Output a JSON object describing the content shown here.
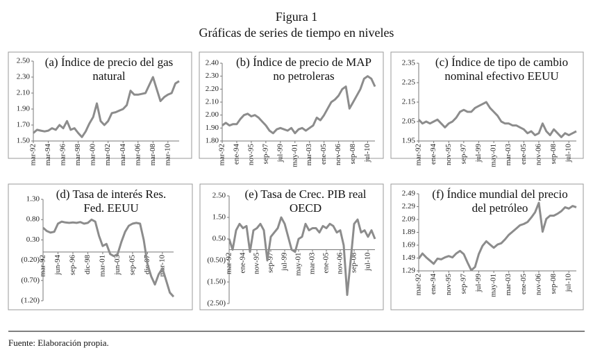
{
  "figure": {
    "title": "Figura 1",
    "subtitle": "Gráficas de series de tiempo en niveles"
  },
  "source": "Fuente: Elaboración propia.",
  "chart_data": [
    {
      "type": "line",
      "title": "(a) Índice de precio del gas natural",
      "color": "#8c8c8c",
      "categories": [
        "mar-92",
        null,
        null,
        null,
        "mar-94",
        null,
        null,
        null,
        "mar-96",
        null,
        null,
        null,
        "mar-98",
        null,
        null,
        null,
        "mar-00",
        null,
        null,
        null,
        "mar-02",
        null,
        null,
        null,
        "mar-04",
        null,
        null,
        null,
        "mar-06",
        null,
        null,
        null,
        "mar-08",
        null,
        null,
        null,
        "mar-10",
        null,
        null,
        null
      ],
      "values": [
        1.6,
        1.64,
        1.63,
        1.62,
        1.63,
        1.66,
        1.64,
        1.7,
        1.66,
        1.75,
        1.64,
        1.66,
        1.6,
        1.55,
        1.62,
        1.72,
        1.8,
        1.97,
        1.75,
        1.7,
        1.75,
        1.85,
        1.86,
        1.88,
        1.9,
        1.95,
        2.13,
        2.08,
        2.08,
        2.09,
        2.1,
        2.2,
        2.3,
        2.15,
        2.0,
        2.05,
        2.08,
        2.1,
        2.22,
        2.25
      ],
      "ylim": [
        1.5,
        2.5
      ],
      "yticks": [
        {
          "value": 1.5,
          "label": "1.50"
        },
        {
          "value": 1.7,
          "label": "1.70"
        },
        {
          "value": 1.9,
          "label": "1.90"
        },
        {
          "value": 2.1,
          "label": "2.10"
        },
        {
          "value": 2.3,
          "label": "2.30"
        },
        {
          "value": 2.5,
          "label": "2.50"
        }
      ]
    },
    {
      "type": "line",
      "title": "(b) Índice de precio de MAP no petroleras",
      "color": "#8c8c8c",
      "categories": [
        "mar-92",
        null,
        null,
        null,
        "ene-94",
        null,
        null,
        null,
        "nov-95",
        null,
        null,
        null,
        "sep-97",
        null,
        null,
        null,
        "jul-99",
        null,
        null,
        null,
        "may-01",
        null,
        null,
        null,
        "mar-03",
        null,
        null,
        null,
        "ene-05",
        null,
        null,
        null,
        "nov-06",
        null,
        null,
        null,
        "sep-08",
        null,
        null,
        null,
        "jul-10",
        null,
        null
      ],
      "values": [
        1.92,
        1.94,
        1.92,
        1.93,
        1.93,
        1.97,
        2.0,
        2.01,
        1.99,
        2.0,
        1.98,
        1.95,
        1.92,
        1.88,
        1.86,
        1.89,
        1.9,
        1.89,
        1.88,
        1.9,
        1.86,
        1.89,
        1.9,
        1.88,
        1.9,
        1.92,
        1.98,
        1.96,
        2.0,
        2.05,
        2.1,
        2.12,
        2.15,
        2.2,
        2.22,
        2.05,
        2.1,
        2.15,
        2.2,
        2.28,
        2.3,
        2.28,
        2.22
      ],
      "ylim": [
        1.8,
        2.4
      ],
      "yticks": [
        {
          "value": 1.8,
          "label": "1.80"
        },
        {
          "value": 1.9,
          "label": "1.90"
        },
        {
          "value": 2.0,
          "label": "2.00"
        },
        {
          "value": 2.1,
          "label": "2.10"
        },
        {
          "value": 2.2,
          "label": "2.20"
        },
        {
          "value": 2.3,
          "label": "2.30"
        },
        {
          "value": 2.4,
          "label": "2.40"
        }
      ]
    },
    {
      "type": "line",
      "title": "(c) Índice de tipo de cambio nominal efectivo EEUU",
      "color": "#8c8c8c",
      "categories": [
        "mar-92",
        null,
        null,
        null,
        "ene-94",
        null,
        null,
        null,
        "nov-95",
        null,
        null,
        null,
        "sep-97",
        null,
        null,
        null,
        "jul-99",
        null,
        null,
        null,
        "may-01",
        null,
        null,
        null,
        "mar-03",
        null,
        null,
        null,
        "ene-05",
        null,
        null,
        null,
        "nov-06",
        null,
        null,
        null,
        "sep-08",
        null,
        null,
        null,
        "jul-10",
        null,
        null
      ],
      "values": [
        2.06,
        2.04,
        2.05,
        2.04,
        2.05,
        2.06,
        2.04,
        2.02,
        2.04,
        2.05,
        2.07,
        2.1,
        2.11,
        2.1,
        2.1,
        2.12,
        2.13,
        2.14,
        2.15,
        2.12,
        2.1,
        2.08,
        2.05,
        2.04,
        2.04,
        2.03,
        2.03,
        2.02,
        2.01,
        1.99,
        2.0,
        1.98,
        1.99,
        2.04,
        2.0,
        1.98,
        2.01,
        1.99,
        1.97,
        1.99,
        1.98,
        1.99,
        2.0
      ],
      "ylim": [
        1.95,
        2.35
      ],
      "yticks": [
        1.95,
        2.05,
        2.15,
        2.25,
        2.35
      ]
    },
    {
      "type": "line",
      "title": "(d) Tasa de interés Res. Fed. EEUU",
      "color": "#8c8c8c",
      "categories": [
        "mar-92",
        null,
        null,
        null,
        "jun-94",
        null,
        null,
        null,
        "sep-96",
        null,
        null,
        null,
        "dic-98",
        null,
        null,
        null,
        "mar-01",
        null,
        null,
        null,
        "jun-03",
        null,
        null,
        null,
        "sep-05",
        null,
        null,
        null,
        "dic-07",
        null,
        null,
        null,
        "mar-10",
        null,
        null,
        null
      ],
      "values": [
        0.6,
        0.52,
        0.48,
        0.5,
        0.7,
        0.75,
        0.73,
        0.72,
        0.73,
        0.72,
        0.74,
        0.7,
        0.72,
        0.8,
        0.75,
        0.4,
        0.15,
        0.2,
        -0.05,
        -0.1,
        -0.05,
        0.25,
        0.5,
        0.65,
        0.7,
        0.72,
        0.7,
        0.3,
        -0.3,
        -0.6,
        -0.8,
        -0.55,
        -0.4,
        -0.7,
        -1.0,
        -1.1
      ],
      "ylim": [
        -1.2,
        1.3
      ],
      "yticks": [
        {
          "value": -1.2,
          "label": "(1.20)"
        },
        {
          "value": -0.7,
          "label": "(0.70)"
        },
        {
          "value": -0.2,
          "label": "(0.20)"
        },
        {
          "value": 0.3,
          "label": "0.30"
        },
        {
          "value": 0.8,
          "label": "0.80"
        },
        {
          "value": 1.3,
          "label": "1.30"
        }
      ]
    },
    {
      "type": "line",
      "title": "(e) Tasa de Crec. PIB real OECD",
      "color": "#8c8c8c",
      "categories": [
        "mar-92",
        null,
        null,
        null,
        "ene-94",
        null,
        null,
        null,
        "nov-95",
        null,
        null,
        null,
        "sep-97",
        null,
        null,
        null,
        "jul-99",
        null,
        null,
        null,
        "may-01",
        null,
        null,
        null,
        "mar-03",
        null,
        null,
        null,
        "ene-05",
        null,
        null,
        null,
        "nov-06",
        null,
        null,
        null,
        "sep-08",
        null,
        null,
        null,
        "jul-10",
        null,
        null
      ],
      "values": [
        0.5,
        0.0,
        0.9,
        1.2,
        1.0,
        1.1,
        -0.1,
        0.9,
        1.0,
        1.2,
        0.9,
        -0.5,
        0.6,
        0.8,
        1.0,
        1.5,
        1.2,
        0.6,
        0.0,
        -0.1,
        0.5,
        0.6,
        1.2,
        0.9,
        1.0,
        1.0,
        0.8,
        1.1,
        1.0,
        1.2,
        1.1,
        0.8,
        0.9,
        0.2,
        -2.1,
        -0.5,
        1.2,
        1.4,
        0.8,
        0.9,
        0.6,
        0.9,
        0.5
      ],
      "ylim": [
        -2.5,
        2.5
      ],
      "yticks": [
        {
          "value": -2.5,
          "label": "(2.50)"
        },
        {
          "value": -1.5,
          "label": "(1.50)"
        },
        {
          "value": -0.5,
          "label": "(0.50)"
        },
        {
          "value": 0.5,
          "label": "0.50"
        },
        {
          "value": 1.5,
          "label": "1.50"
        },
        {
          "value": 2.5,
          "label": "2.50"
        }
      ]
    },
    {
      "type": "line",
      "title": "(f) Índice mundial del precio del petróleo",
      "color": "#8c8c8c",
      "categories": [
        "mar-92",
        null,
        null,
        null,
        "ene-94",
        null,
        null,
        null,
        "nov-95",
        null,
        null,
        null,
        "sep-97",
        null,
        null,
        null,
        "jul-99",
        null,
        null,
        null,
        "may-01",
        null,
        null,
        null,
        "mar-03",
        null,
        null,
        null,
        "ene-05",
        null,
        null,
        null,
        "nov-06",
        null,
        null,
        null,
        "sep-08",
        null,
        null,
        null,
        "jul-10",
        null,
        null
      ],
      "values": [
        1.48,
        1.56,
        1.5,
        1.45,
        1.4,
        1.48,
        1.47,
        1.5,
        1.52,
        1.5,
        1.56,
        1.6,
        1.55,
        1.42,
        1.3,
        1.35,
        1.55,
        1.68,
        1.75,
        1.7,
        1.65,
        1.7,
        1.72,
        1.78,
        1.85,
        1.9,
        1.95,
        2.0,
        2.02,
        2.05,
        2.12,
        2.2,
        2.35,
        1.9,
        2.1,
        2.15,
        2.15,
        2.18,
        2.22,
        2.28,
        2.26,
        2.3,
        2.28
      ],
      "ylim": [
        1.29,
        2.49
      ],
      "yticks": [
        1.29,
        1.49,
        1.69,
        1.89,
        2.09,
        2.29,
        2.49
      ]
    }
  ]
}
